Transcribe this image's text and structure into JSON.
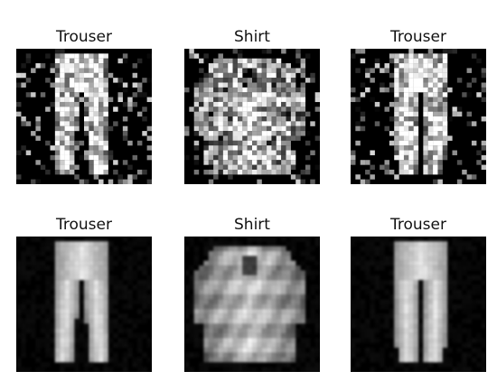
{
  "grid": {
    "panels": [
      {
        "title": "Trouser",
        "garment": "trouser",
        "style": "noisy"
      },
      {
        "title": "Shirt",
        "garment": "shirt",
        "style": "noisy"
      },
      {
        "title": "Trouser",
        "garment": "trouser",
        "style": "noisy"
      },
      {
        "title": "Trouser",
        "garment": "trouser",
        "style": "smooth"
      },
      {
        "title": "Shirt",
        "garment": "shirt",
        "style": "smooth"
      },
      {
        "title": "Trouser",
        "garment": "trouser",
        "style": "smooth"
      }
    ]
  },
  "colors": {
    "background": "#ffffff",
    "image_background": "#000000",
    "title_text": "#111111"
  }
}
